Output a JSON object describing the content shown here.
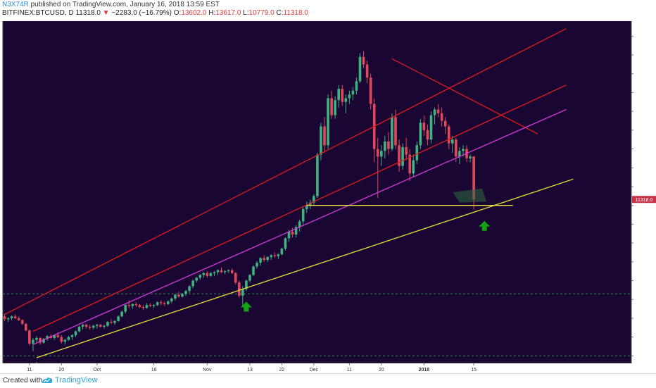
{
  "header": {
    "author": "N3X74R",
    "published": "published on TradingView.com, January 16, 2018 13:59 EST",
    "symbol": "BITFINEX:BTCUSD, D",
    "last": "11318.0",
    "change_arrow": "▼",
    "change": "−2283.0 (−16.79%)",
    "o_label": "O:",
    "o_value": "13602.0",
    "h_label": "H:",
    "h_value": "13617.0",
    "l_label": "L:",
    "l_value": "10779.0",
    "c_label": "C:",
    "c_value": "11318.0"
  },
  "footer": {
    "created_with": "Created with",
    "brand": "TradingView"
  },
  "colors": {
    "background": "#1a0633",
    "candle_up": "#3fb37f",
    "candle_down": "#e0495a",
    "red_channel": "#e01c1c",
    "magenta_line": "#d23bd9",
    "yellow_line": "#e8e23a",
    "dashed_level": "#2e8b57",
    "arrows": "#12a312",
    "price_label": "#c8334a"
  },
  "icons": [
    "up-arrow-icon",
    "tradingview-logo-icon"
  ],
  "chart_data": {
    "type": "candlestick",
    "ylim": [
      2600,
      20800
    ],
    "x_ticks": [
      {
        "label": "11",
        "idx": 7
      },
      {
        "label": "20",
        "idx": 16
      },
      {
        "label": "Oct",
        "idx": 26
      },
      {
        "label": "16",
        "idx": 42
      },
      {
        "label": "Nov",
        "idx": 57
      },
      {
        "label": "13",
        "idx": 69
      },
      {
        "label": "22",
        "idx": 78
      },
      {
        "label": "Dec",
        "idx": 87
      },
      {
        "label": "11",
        "idx": 97
      },
      {
        "label": "20",
        "idx": 106
      },
      {
        "label": "2018",
        "idx": 118
      },
      {
        "label": "15",
        "idx": 132
      }
    ],
    "last_price_label": "11318.0",
    "candles": [
      [
        5100,
        5250,
        4850,
        4950
      ],
      [
        4950,
        5050,
        4800,
        5000
      ],
      [
        5000,
        5150,
        4900,
        5100
      ],
      [
        5100,
        5200,
        4950,
        5000
      ],
      [
        5000,
        5100,
        4850,
        4900
      ],
      [
        4900,
        4950,
        4650,
        4700
      ],
      [
        4700,
        4750,
        4300,
        4350
      ],
      [
        4350,
        4400,
        3550,
        3650
      ],
      [
        3650,
        3950,
        3250,
        3850
      ],
      [
        3850,
        4050,
        3700,
        3950
      ],
      [
        3950,
        4000,
        3600,
        3700
      ],
      [
        3700,
        3950,
        3650,
        3900
      ],
      [
        3900,
        4100,
        3800,
        4050
      ],
      [
        4050,
        4150,
        3900,
        3950
      ],
      [
        3950,
        4150,
        3850,
        4100
      ],
      [
        4100,
        4250,
        3950,
        4000
      ],
      [
        4000,
        4100,
        3650,
        3750
      ],
      [
        3750,
        3900,
        3600,
        3850
      ],
      [
        3850,
        4050,
        3800,
        4000
      ],
      [
        4000,
        4150,
        3850,
        4100
      ],
      [
        4100,
        4350,
        4000,
        4300
      ],
      [
        4300,
        4600,
        4250,
        4550
      ],
      [
        4550,
        4700,
        4400,
        4650
      ],
      [
        4650,
        4700,
        4450,
        4550
      ],
      [
        4550,
        4650,
        4400,
        4500
      ],
      [
        4500,
        4650,
        4400,
        4600
      ],
      [
        4600,
        4700,
        4450,
        4650
      ],
      [
        4650,
        4700,
        4500,
        4550
      ],
      [
        4550,
        4650,
        4450,
        4600
      ],
      [
        4600,
        4850,
        4550,
        4800
      ],
      [
        4800,
        4950,
        4700,
        4750
      ],
      [
        4750,
        4900,
        4650,
        4850
      ],
      [
        4850,
        5150,
        4800,
        5100
      ],
      [
        5100,
        5400,
        5050,
        5350
      ],
      [
        5350,
        5750,
        5250,
        5700
      ],
      [
        5700,
        5950,
        5550,
        5650
      ],
      [
        5650,
        5800,
        5500,
        5750
      ],
      [
        5750,
        5850,
        5600,
        5700
      ],
      [
        5700,
        5750,
        5550,
        5600
      ],
      [
        5600,
        5700,
        5450,
        5550
      ],
      [
        5550,
        5800,
        5500,
        5700
      ],
      [
        5700,
        5800,
        5600,
        5650
      ],
      [
        5650,
        5750,
        5550,
        5700
      ],
      [
        5700,
        5900,
        5650,
        5850
      ],
      [
        5850,
        5950,
        5700,
        5800
      ],
      [
        5800,
        5900,
        5650,
        5750
      ],
      [
        5750,
        5950,
        5700,
        5900
      ],
      [
        5900,
        6100,
        5800,
        6050
      ],
      [
        6050,
        6300,
        5950,
        6250
      ],
      [
        6250,
        6400,
        6100,
        6150
      ],
      [
        6150,
        6350,
        6100,
        6300
      ],
      [
        6300,
        6500,
        6200,
        6450
      ],
      [
        6450,
        6750,
        6350,
        6700
      ],
      [
        6700,
        7050,
        6600,
        7000
      ],
      [
        7000,
        7200,
        6900,
        7150
      ],
      [
        7150,
        7350,
        7050,
        7300
      ],
      [
        7300,
        7450,
        7150,
        7400
      ],
      [
        7400,
        7500,
        7150,
        7250
      ],
      [
        7250,
        7450,
        7200,
        7400
      ],
      [
        7400,
        7500,
        7250,
        7450
      ],
      [
        7450,
        7600,
        7300,
        7550
      ],
      [
        7550,
        7700,
        7400,
        7450
      ],
      [
        7450,
        7550,
        7350,
        7500
      ],
      [
        7500,
        7600,
        7400,
        7550
      ],
      [
        7550,
        7650,
        7350,
        7400
      ],
      [
        7400,
        7450,
        6800,
        6900
      ],
      [
        6900,
        7000,
        6100,
        6200
      ],
      [
        6200,
        6700,
        5600,
        6550
      ],
      [
        6550,
        7050,
        6450,
        7000
      ],
      [
        7000,
        7350,
        6900,
        7300
      ],
      [
        7300,
        7800,
        7250,
        7750
      ],
      [
        7750,
        8050,
        7650,
        7950
      ],
      [
        7950,
        8250,
        7800,
        8200
      ],
      [
        8200,
        8350,
        8000,
        8100
      ],
      [
        8100,
        8300,
        8000,
        8250
      ],
      [
        8250,
        8400,
        8100,
        8350
      ],
      [
        8350,
        8500,
        8200,
        8300
      ],
      [
        8300,
        8450,
        8150,
        8400
      ],
      [
        8400,
        8750,
        8350,
        8700
      ],
      [
        8700,
        9300,
        8600,
        9250
      ],
      [
        9250,
        9700,
        9050,
        9600
      ],
      [
        9600,
        9800,
        9300,
        9450
      ],
      [
        9450,
        9950,
        9300,
        9850
      ],
      [
        9850,
        10250,
        9600,
        10150
      ],
      [
        10150,
        10900,
        9900,
        10800
      ],
      [
        10800,
        11200,
        10600,
        11000
      ],
      [
        11000,
        11300,
        10800,
        11150
      ],
      [
        11150,
        11600,
        11000,
        11500
      ],
      [
        11500,
        13800,
        11400,
        13700
      ],
      [
        13700,
        15400,
        13400,
        15200
      ],
      [
        15200,
        15700,
        13800,
        14200
      ],
      [
        14200,
        16900,
        14000,
        16700
      ],
      [
        16700,
        17100,
        15600,
        15800
      ],
      [
        15800,
        16800,
        15600,
        16600
      ],
      [
        16600,
        17400,
        16200,
        17200
      ],
      [
        17200,
        17400,
        16300,
        16500
      ],
      [
        16500,
        16900,
        15900,
        16700
      ],
      [
        16700,
        17100,
        16400,
        16900
      ],
      [
        16900,
        17300,
        16600,
        17100
      ],
      [
        17100,
        17800,
        16900,
        17600
      ],
      [
        17600,
        19100,
        17500,
        18900
      ],
      [
        18900,
        19200,
        18300,
        18500
      ],
      [
        18500,
        18700,
        17500,
        17800
      ],
      [
        17800,
        18000,
        16100,
        16400
      ],
      [
        16400,
        16700,
        13300,
        14000
      ],
      [
        14000,
        14600,
        11400,
        13600
      ],
      [
        13600,
        14200,
        13100,
        13900
      ],
      [
        13900,
        14700,
        13500,
        14400
      ],
      [
        14400,
        14900,
        13700,
        14000
      ],
      [
        14000,
        15900,
        13900,
        15700
      ],
      [
        15700,
        16100,
        14000,
        14200
      ],
      [
        14200,
        14500,
        12800,
        13100
      ],
      [
        13100,
        14300,
        12900,
        14100
      ],
      [
        14100,
        14600,
        13400,
        13700
      ],
      [
        13700,
        14000,
        12300,
        12700
      ],
      [
        12700,
        13700,
        12500,
        13400
      ],
      [
        13400,
        14400,
        13200,
        14200
      ],
      [
        14200,
        15600,
        14000,
        15400
      ],
      [
        15400,
        15800,
        14700,
        15000
      ],
      [
        15000,
        15300,
        14200,
        14500
      ],
      [
        14500,
        16000,
        14300,
        15800
      ],
      [
        15800,
        16200,
        15300,
        16100
      ],
      [
        16100,
        16400,
        15700,
        15900
      ],
      [
        15900,
        16200,
        15200,
        15500
      ],
      [
        15500,
        15700,
        14800,
        15200
      ],
      [
        15200,
        15300,
        14000,
        14300
      ],
      [
        14300,
        14700,
        13800,
        14500
      ],
      [
        14500,
        14600,
        13300,
        13600
      ],
      [
        13600,
        14100,
        13200,
        13900
      ],
      [
        13900,
        14200,
        13600,
        14000
      ],
      [
        14000,
        14200,
        13300,
        13500
      ],
      [
        13500,
        13700,
        13300,
        13602
      ],
      [
        13602,
        13617,
        10779,
        11318
      ]
    ],
    "lines": [
      {
        "name": "",
        "color": "red_channel",
        "points": [
          [
            0,
            5200
          ],
          [
            158,
            20400
          ]
        ]
      },
      {
        "name": "",
        "color": "red_channel",
        "points": [
          [
            8,
            4300
          ],
          [
            158,
            17400
          ]
        ]
      },
      {
        "name": "",
        "color": "red_channel",
        "points": [
          [
            109,
            18800
          ],
          [
            150,
            14800
          ]
        ]
      },
      {
        "name": "",
        "color": "magenta_line",
        "points": [
          [
            8,
            3600
          ],
          [
            158,
            16100
          ]
        ]
      },
      {
        "name": "",
        "color": "yellow_line",
        "points": [
          [
            9,
            2900
          ],
          [
            160,
            12400
          ]
        ]
      },
      {
        "name": "",
        "color": "yellow_line",
        "points": [
          [
            85,
            11000
          ],
          [
            143,
            11000
          ]
        ]
      }
    ],
    "dashed_levels": [
      6300,
      3000
    ],
    "arrows_at": [
      [
        9,
        2900
      ],
      [
        68,
        6100
      ],
      [
        135,
        10400
      ]
    ]
  }
}
